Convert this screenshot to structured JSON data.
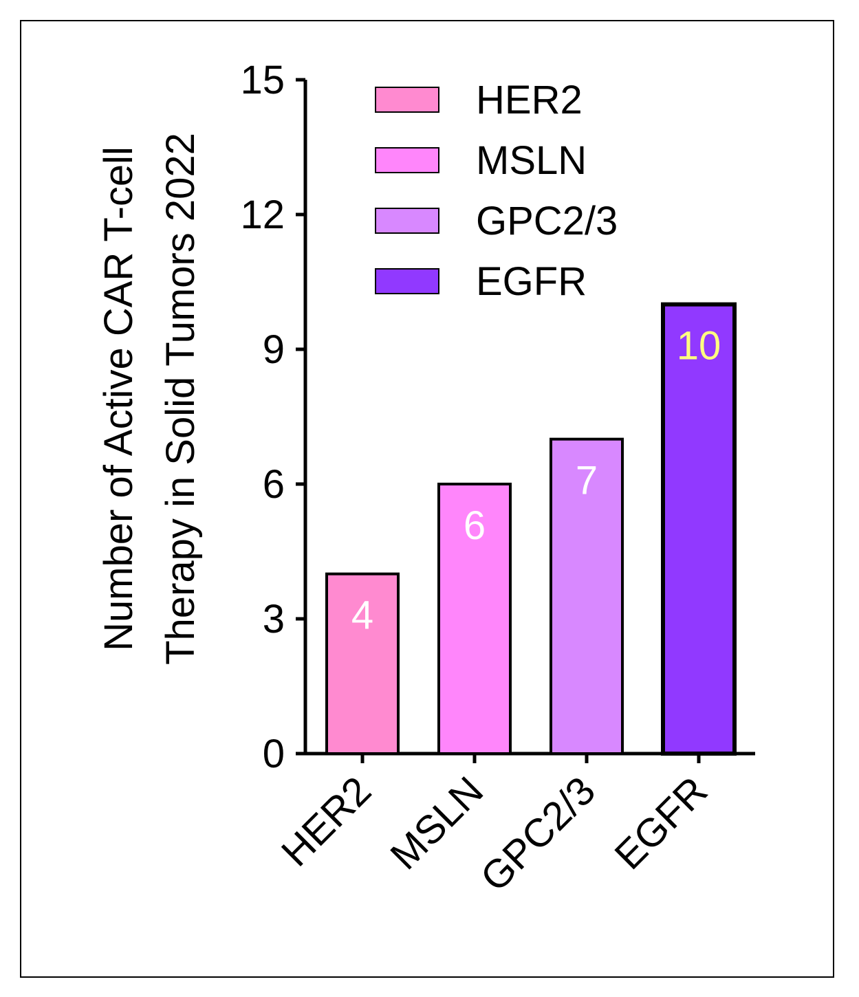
{
  "chart_data": {
    "type": "bar",
    "title": "",
    "xlabel": "",
    "ylabel_lines": [
      "Number of Active CAR T-cell",
      "Therapy in Solid Tumors 2022"
    ],
    "categories": [
      "HER2",
      "MSLN",
      "GPC2/3",
      "EGFR"
    ],
    "values": [
      4,
      6,
      7,
      10
    ],
    "data_labels": [
      "4",
      "6",
      "7",
      "10"
    ],
    "bar_colors": [
      "#ff8ad0",
      "#ff86fb",
      "#d888ff",
      "#9139ff"
    ],
    "label_colors": [
      "#ffffff",
      "#ffffff",
      "#ffffff",
      "#ffff80"
    ],
    "ylim": [
      0,
      15
    ],
    "yticks": [
      0,
      3,
      6,
      9,
      12,
      15
    ],
    "ytick_labels": [
      "0",
      "3",
      "6",
      "9",
      "12",
      "15"
    ],
    "grid": false,
    "legend": {
      "placement": "top-center",
      "entries": [
        "HER2",
        "MSLN",
        "GPC2/3",
        "EGFR"
      ]
    }
  }
}
